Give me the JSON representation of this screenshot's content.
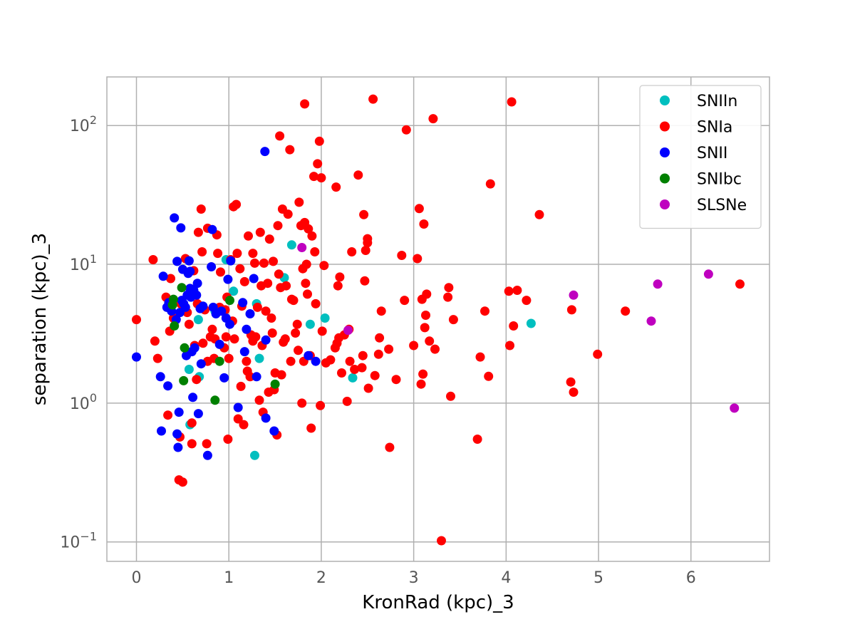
{
  "chart_data": {
    "type": "scatter",
    "title": "",
    "xlabel": "KronRad (kpc)_3",
    "ylabel": "separation (kpc)_3",
    "xlim": [
      -0.32,
      6.85
    ],
    "ylim_log10": [
      -1.14,
      2.35
    ],
    "yscale": "log",
    "grid": true,
    "legend_position": "top-right",
    "x_ticks": [
      {
        "value": 0,
        "label": "0"
      },
      {
        "value": 1,
        "label": "1"
      },
      {
        "value": 2,
        "label": "2"
      },
      {
        "value": 3,
        "label": "3"
      },
      {
        "value": 4,
        "label": "4"
      },
      {
        "value": 5,
        "label": "5"
      },
      {
        "value": 6,
        "label": "6"
      }
    ],
    "y_ticks": [
      {
        "exp": -1,
        "base": "10",
        "sup": "−1"
      },
      {
        "exp": 0,
        "base": "10",
        "sup": "0"
      },
      {
        "exp": 1,
        "base": "10",
        "sup": "1"
      },
      {
        "exp": 2,
        "base": "10",
        "sup": "2"
      }
    ],
    "series": [
      {
        "name": "SNIIn",
        "color": "#00bfbf",
        "points": [
          [
            0.57,
            1.75
          ],
          [
            0.58,
            0.7
          ],
          [
            0.67,
            4.0
          ],
          [
            0.68,
            1.55
          ],
          [
            0.7,
            5.0
          ],
          [
            0.85,
            4.6
          ],
          [
            0.97,
            10.8
          ],
          [
            1.05,
            6.4
          ],
          [
            1.3,
            5.2
          ],
          [
            1.33,
            2.1
          ],
          [
            1.28,
            0.42
          ],
          [
            1.6,
            8.0
          ],
          [
            1.68,
            13.8
          ],
          [
            1.88,
            3.7
          ],
          [
            2.04,
            4.1
          ],
          [
            2.34,
            1.52
          ],
          [
            4.27,
            3.75
          ]
        ]
      },
      {
        "name": "SNIa",
        "color": "#ff0000",
        "points": [
          [
            0.0,
            4.0
          ],
          [
            0.18,
            10.8
          ],
          [
            0.2,
            2.8
          ],
          [
            0.23,
            2.1
          ],
          [
            0.32,
            5.8
          ],
          [
            0.34,
            0.82
          ],
          [
            0.36,
            3.3
          ],
          [
            0.37,
            7.9
          ],
          [
            0.4,
            4.1
          ],
          [
            0.46,
            0.28
          ],
          [
            0.47,
            0.57
          ],
          [
            0.48,
            5.2
          ],
          [
            0.5,
            0.27
          ],
          [
            0.53,
            11.0
          ],
          [
            0.55,
            4.5
          ],
          [
            0.57,
            3.7
          ],
          [
            0.6,
            0.72
          ],
          [
            0.6,
            0.51
          ],
          [
            0.62,
            9.0
          ],
          [
            0.63,
            2.6
          ],
          [
            0.65,
            1.48
          ],
          [
            0.66,
            5.2
          ],
          [
            0.67,
            17.0
          ],
          [
            0.7,
            25.0
          ],
          [
            0.71,
            12.3
          ],
          [
            0.72,
            2.7
          ],
          [
            0.74,
            4.7
          ],
          [
            0.76,
            0.51
          ],
          [
            0.77,
            2.0
          ],
          [
            0.77,
            18.2
          ],
          [
            0.8,
            3.0
          ],
          [
            0.82,
            3.4
          ],
          [
            0.84,
            2.1
          ],
          [
            0.85,
            2.9
          ],
          [
            0.87,
            16.3
          ],
          [
            0.88,
            12.0
          ],
          [
            0.9,
            4.9
          ],
          [
            0.91,
            8.8
          ],
          [
            0.95,
            2.5
          ],
          [
            0.96,
            4.7
          ],
          [
            0.97,
            3.0
          ],
          [
            0.98,
            5.8
          ],
          [
            0.99,
            0.55
          ],
          [
            1.0,
            2.1
          ],
          [
            1.02,
            10.8
          ],
          [
            1.04,
            3.9
          ],
          [
            1.05,
            26.0
          ],
          [
            1.06,
            2.9
          ],
          [
            1.08,
            27.0
          ],
          [
            1.09,
            12.0
          ],
          [
            1.1,
            0.77
          ],
          [
            1.12,
            9.3
          ],
          [
            1.13,
            1.32
          ],
          [
            1.14,
            5.0
          ],
          [
            1.16,
            0.7
          ],
          [
            1.17,
            7.5
          ],
          [
            1.19,
            2.0
          ],
          [
            1.2,
            1.7
          ],
          [
            1.21,
            16.0
          ],
          [
            1.23,
            1.55
          ],
          [
            1.24,
            3.1
          ],
          [
            1.26,
            2.8
          ],
          [
            1.26,
            12.0
          ],
          [
            1.28,
            10.2
          ],
          [
            1.29,
            3.0
          ],
          [
            1.31,
            4.9
          ],
          [
            1.33,
            1.05
          ],
          [
            1.34,
            17.0
          ],
          [
            1.35,
            7.0
          ],
          [
            1.36,
            2.6
          ],
          [
            1.37,
            0.86
          ],
          [
            1.38,
            10.2
          ],
          [
            1.4,
            4.6
          ],
          [
            1.42,
            7.3
          ],
          [
            1.43,
            1.2
          ],
          [
            1.44,
            15.2
          ],
          [
            1.46,
            4.1
          ],
          [
            1.47,
            3.2
          ],
          [
            1.48,
            10.5
          ],
          [
            1.49,
            1.25
          ],
          [
            1.5,
            1.65
          ],
          [
            1.52,
            0.59
          ],
          [
            1.53,
            19.0
          ],
          [
            1.54,
            8.5
          ],
          [
            1.55,
            84.0
          ],
          [
            1.56,
            6.8
          ],
          [
            1.57,
            1.6
          ],
          [
            1.58,
            25.0
          ],
          [
            1.59,
            2.75
          ],
          [
            1.61,
            2.9
          ],
          [
            1.62,
            7.0
          ],
          [
            1.64,
            23.0
          ],
          [
            1.66,
            67.0
          ],
          [
            1.67,
            2.0
          ],
          [
            1.68,
            5.6
          ],
          [
            1.7,
            5.5
          ],
          [
            1.72,
            3.2
          ],
          [
            1.74,
            3.7
          ],
          [
            1.75,
            2.4
          ],
          [
            1.76,
            28.0
          ],
          [
            1.78,
            19.0
          ],
          [
            1.79,
            1.0
          ],
          [
            1.8,
            9.3
          ],
          [
            1.81,
            2.0
          ],
          [
            1.82,
            143.0
          ],
          [
            1.82,
            20.0
          ],
          [
            1.83,
            7.3
          ],
          [
            1.84,
            10.0
          ],
          [
            1.85,
            6.1
          ],
          [
            1.86,
            18.0
          ],
          [
            1.88,
            2.2
          ],
          [
            1.89,
            0.66
          ],
          [
            1.9,
            16.0
          ],
          [
            1.92,
            43.0
          ],
          [
            1.93,
            12.3
          ],
          [
            1.94,
            5.2
          ],
          [
            1.96,
            53.0
          ],
          [
            1.98,
            77.0
          ],
          [
            1.99,
            0.96
          ],
          [
            2.0,
            42.0
          ],
          [
            2.01,
            3.3
          ],
          [
            2.03,
            9.8
          ],
          [
            2.05,
            1.95
          ],
          [
            2.1,
            2.05
          ],
          [
            2.15,
            2.5
          ],
          [
            2.16,
            36.0
          ],
          [
            2.17,
            2.7
          ],
          [
            2.18,
            7.0
          ],
          [
            2.19,
            2.95
          ],
          [
            2.2,
            8.1
          ],
          [
            2.22,
            1.65
          ],
          [
            2.25,
            3.1
          ],
          [
            2.28,
            1.03
          ],
          [
            2.3,
            3.4
          ],
          [
            2.31,
            2.0
          ],
          [
            2.33,
            12.3
          ],
          [
            2.36,
            1.75
          ],
          [
            2.4,
            44.0
          ],
          [
            2.44,
            1.8
          ],
          [
            2.45,
            2.2
          ],
          [
            2.46,
            22.8
          ],
          [
            2.47,
            7.6
          ],
          [
            2.48,
            12.6
          ],
          [
            2.5,
            15.3
          ],
          [
            2.5,
            14.3
          ],
          [
            2.51,
            1.28
          ],
          [
            2.56,
            155.0
          ],
          [
            2.58,
            1.58
          ],
          [
            2.62,
            2.25
          ],
          [
            2.63,
            2.95
          ],
          [
            2.65,
            4.6
          ],
          [
            2.73,
            2.45
          ],
          [
            2.74,
            0.48
          ],
          [
            2.81,
            1.48
          ],
          [
            2.87,
            11.6
          ],
          [
            2.9,
            5.5
          ],
          [
            2.92,
            93.0
          ],
          [
            3.0,
            2.6
          ],
          [
            3.04,
            11.0
          ],
          [
            3.06,
            25.2
          ],
          [
            3.08,
            1.37
          ],
          [
            3.09,
            5.6
          ],
          [
            3.1,
            1.62
          ],
          [
            3.11,
            19.5
          ],
          [
            3.12,
            3.5
          ],
          [
            3.13,
            4.3
          ],
          [
            3.14,
            6.1
          ],
          [
            3.17,
            2.8
          ],
          [
            3.21,
            112.0
          ],
          [
            3.23,
            2.45
          ],
          [
            3.3,
            0.102
          ],
          [
            3.37,
            5.8
          ],
          [
            3.38,
            6.8
          ],
          [
            3.4,
            1.12
          ],
          [
            3.43,
            4.0
          ],
          [
            3.69,
            0.55
          ],
          [
            3.72,
            2.15
          ],
          [
            3.77,
            4.6
          ],
          [
            3.81,
            1.56
          ],
          [
            3.83,
            38.0
          ],
          [
            4.03,
            6.4
          ],
          [
            4.04,
            2.6
          ],
          [
            4.06,
            148.0
          ],
          [
            4.08,
            3.6
          ],
          [
            4.12,
            6.5
          ],
          [
            4.22,
            5.5
          ],
          [
            4.36,
            22.8
          ],
          [
            4.7,
            1.42
          ],
          [
            4.71,
            4.7
          ],
          [
            4.73,
            1.2
          ],
          [
            4.99,
            2.25
          ],
          [
            5.29,
            4.6
          ],
          [
            6.53,
            7.2
          ]
        ]
      },
      {
        "name": "SNII",
        "color": "#0000ff",
        "points": [
          [
            0.0,
            2.15
          ],
          [
            0.26,
            1.55
          ],
          [
            0.27,
            0.63
          ],
          [
            0.29,
            8.2
          ],
          [
            0.33,
            4.9
          ],
          [
            0.34,
            1.33
          ],
          [
            0.35,
            5.3
          ],
          [
            0.38,
            4.6
          ],
          [
            0.41,
            21.6
          ],
          [
            0.43,
            4.0
          ],
          [
            0.44,
            0.6
          ],
          [
            0.44,
            10.5
          ],
          [
            0.45,
            0.48
          ],
          [
            0.46,
            0.86
          ],
          [
            0.47,
            4.5
          ],
          [
            0.48,
            18.3
          ],
          [
            0.49,
            5.5
          ],
          [
            0.5,
            9.2
          ],
          [
            0.51,
            5.2
          ],
          [
            0.53,
            4.9
          ],
          [
            0.54,
            2.2
          ],
          [
            0.55,
            6.0
          ],
          [
            0.56,
            8.6
          ],
          [
            0.57,
            10.6
          ],
          [
            0.58,
            6.7
          ],
          [
            0.58,
            8.9
          ],
          [
            0.59,
            5.8
          ],
          [
            0.6,
            2.35
          ],
          [
            0.61,
            1.1
          ],
          [
            0.62,
            6.5
          ],
          [
            0.63,
            2.5
          ],
          [
            0.65,
            6.0
          ],
          [
            0.66,
            7.3
          ],
          [
            0.67,
            0.84
          ],
          [
            0.69,
            4.8
          ],
          [
            0.7,
            1.92
          ],
          [
            0.72,
            5.0
          ],
          [
            0.77,
            0.42
          ],
          [
            0.81,
            9.6
          ],
          [
            0.82,
            17.8
          ],
          [
            0.83,
            4.9
          ],
          [
            0.86,
            4.4
          ],
          [
            0.9,
            2.65
          ],
          [
            0.92,
            4.6
          ],
          [
            0.95,
            1.52
          ],
          [
            0.97,
            4.1
          ],
          [
            0.99,
            7.8
          ],
          [
            1.01,
            3.7
          ],
          [
            1.02,
            10.6
          ],
          [
            1.1,
            0.93
          ],
          [
            1.15,
            5.3
          ],
          [
            1.17,
            2.35
          ],
          [
            1.19,
            3.4
          ],
          [
            1.23,
            4.4
          ],
          [
            1.27,
            7.9
          ],
          [
            1.3,
            1.55
          ],
          [
            1.39,
            65.0
          ],
          [
            1.4,
            2.85
          ],
          [
            1.4,
            0.78
          ],
          [
            1.49,
            0.63
          ],
          [
            1.86,
            2.2
          ],
          [
            1.94,
            2.0
          ]
        ]
      },
      {
        "name": "SNIbc",
        "color": "#008000",
        "points": [
          [
            0.39,
            5.1
          ],
          [
            0.4,
            5.6
          ],
          [
            0.41,
            3.6
          ],
          [
            0.49,
            6.8
          ],
          [
            0.51,
            1.45
          ],
          [
            0.52,
            2.5
          ],
          [
            0.85,
            1.05
          ],
          [
            0.9,
            2.0
          ],
          [
            1.01,
            5.5
          ],
          [
            1.5,
            1.37
          ]
        ]
      },
      {
        "name": "SLSNe",
        "color": "#bf00bf",
        "points": [
          [
            1.79,
            13.2
          ],
          [
            2.29,
            3.35
          ],
          [
            4.73,
            6.0
          ],
          [
            5.57,
            3.9
          ],
          [
            5.64,
            7.2
          ],
          [
            6.19,
            8.5
          ],
          [
            6.47,
            0.92
          ]
        ]
      }
    ]
  }
}
